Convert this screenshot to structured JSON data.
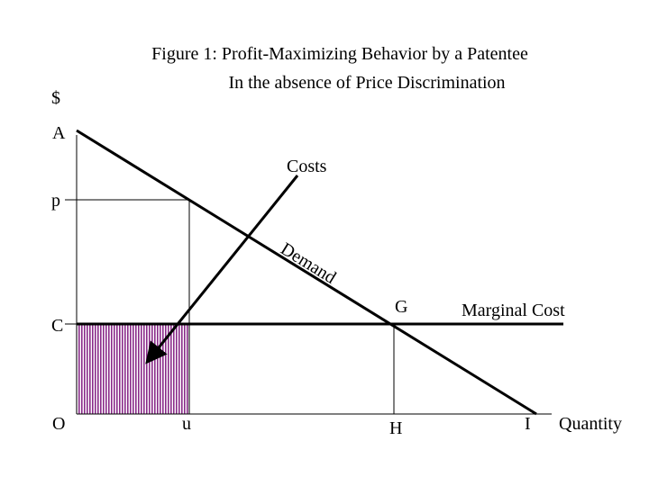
{
  "title": {
    "line1": "Figure 1:  Profit-Maximizing Behavior by a Patentee",
    "line2": "In the absence of Price Discrimination"
  },
  "labels": {
    "dollar": "$",
    "a": "A",
    "p": "p",
    "c": "C",
    "o": "O",
    "u": "u",
    "h": "H",
    "i": "I",
    "g": "G",
    "quantity": "Quantity",
    "costs": "Costs",
    "demand": "Demand",
    "marginal_cost": "Marginal Cost"
  }
}
